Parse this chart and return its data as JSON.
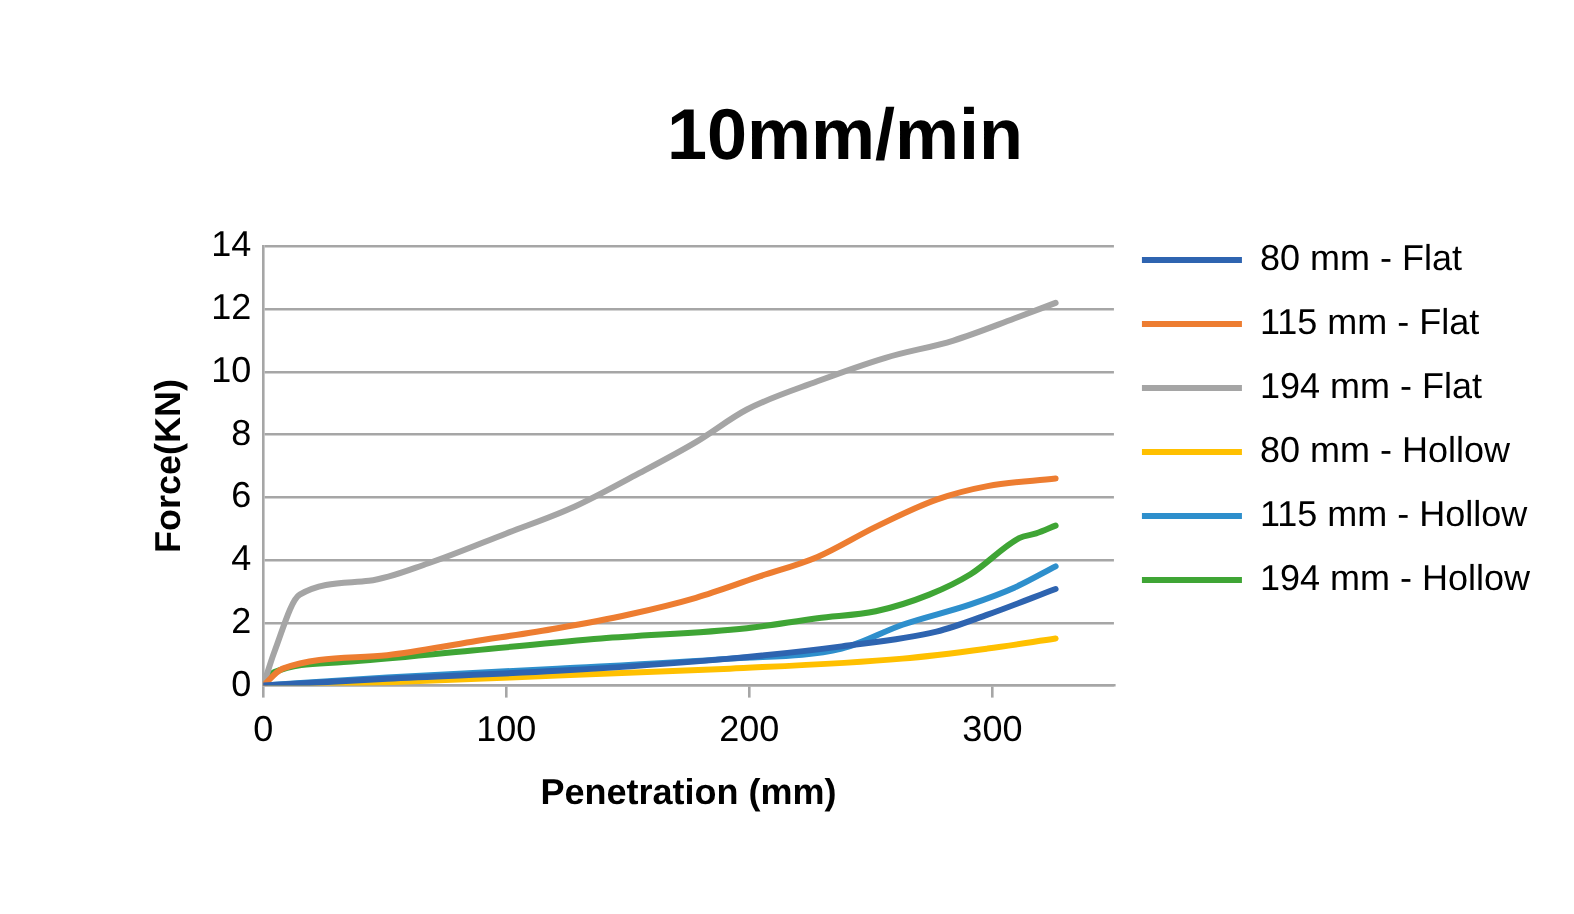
{
  "chart_data": {
    "type": "line",
    "title": "10mm/min",
    "xlabel": "Penetration (mm)",
    "ylabel": "Force(KN)",
    "xlim": [
      0,
      350
    ],
    "xticks": [
      0,
      100,
      200,
      300
    ],
    "ylim": [
      0,
      14
    ],
    "yticks": [
      0,
      2,
      4,
      6,
      8,
      10,
      12,
      14
    ],
    "grid": "y",
    "legend": "right",
    "marker": "none",
    "line_style": "solid",
    "series": [
      {
        "name": "80 mm - Flat",
        "color": "#2e64b0",
        "x": [
          0,
          51,
          121,
          192,
          238,
          277,
          298,
          326
        ],
        "values": [
          0,
          0.22,
          0.47,
          0.86,
          1.25,
          1.72,
          2.26,
          3.08
        ]
      },
      {
        "name": "115 mm - Flat",
        "color": "#ed7d31",
        "x": [
          0,
          8,
          51,
          86,
          121,
          150,
          178,
          203,
          228,
          252,
          277,
          298,
          326
        ],
        "values": [
          0,
          0.54,
          0.97,
          1.4,
          1.83,
          2.26,
          2.8,
          3.45,
          4.1,
          5.06,
          5.93,
          6.36,
          6.6
        ]
      },
      {
        "name": "194 mm - Flat",
        "color": "#a5a5a5",
        "x": [
          0,
          4.6,
          15,
          43.5,
          68,
          100,
          128,
          153,
          178,
          199,
          228,
          256,
          284,
          309,
          326
        ],
        "values": [
          0,
          1.08,
          2.9,
          3.34,
          3.9,
          4.85,
          5.7,
          6.7,
          7.76,
          8.8,
          9.7,
          10.45,
          11.0,
          11.7,
          12.2
        ]
      },
      {
        "name": "80 mm - Hollow",
        "color": "#ffc000",
        "x": [
          0,
          51,
          121,
          192,
          263,
          298,
          326
        ],
        "values": [
          0,
          0.11,
          0.32,
          0.54,
          0.86,
          1.18,
          1.5
        ]
      },
      {
        "name": "115 mm - Hollow",
        "color": "#2e8fcc",
        "x": [
          0,
          51,
          121,
          192,
          238,
          263,
          291,
          309,
          326
        ],
        "values": [
          0,
          0.26,
          0.54,
          0.86,
          1.18,
          1.94,
          2.59,
          3.12,
          3.8
        ]
      },
      {
        "name": "194 mm - Hollow",
        "color": "#3fa535",
        "x": [
          0,
          4.6,
          33,
          86,
          139,
          199,
          228,
          252,
          274,
          291,
          311,
          318,
          326
        ],
        "values": [
          0,
          0.43,
          0.75,
          1.12,
          1.5,
          1.83,
          2.15,
          2.37,
          2.9,
          3.55,
          4.7,
          4.85,
          5.1
        ]
      }
    ]
  }
}
